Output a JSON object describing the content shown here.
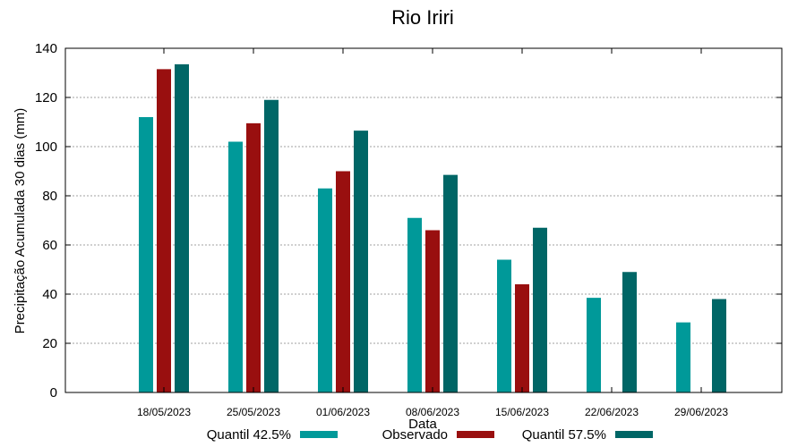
{
  "chart_data": {
    "type": "bar",
    "title": "Rio Iriri",
    "xlabel": "Data",
    "ylabel": "Precipitação Acumulada 30 dias (mm)",
    "ylim": [
      0,
      140
    ],
    "yticks": [
      0,
      20,
      40,
      60,
      80,
      100,
      120,
      140
    ],
    "grid": true,
    "legend_position": "bottom",
    "categories": [
      "18/05/2023",
      "25/05/2023",
      "01/06/2023",
      "08/06/2023",
      "15/06/2023",
      "22/06/2023",
      "29/06/2023"
    ],
    "series": [
      {
        "name": "Quantil 42.5%",
        "color": "#009999",
        "values": [
          112,
          102,
          83,
          71,
          54,
          38.5,
          28.5
        ]
      },
      {
        "name": "Observado",
        "color": "#990f0f",
        "values": [
          131.5,
          109.5,
          90,
          66,
          44,
          null,
          null
        ]
      },
      {
        "name": "Quantil 57.5%",
        "color": "#006666",
        "values": [
          133.5,
          119,
          106.5,
          88.5,
          67,
          49,
          38
        ]
      }
    ]
  }
}
